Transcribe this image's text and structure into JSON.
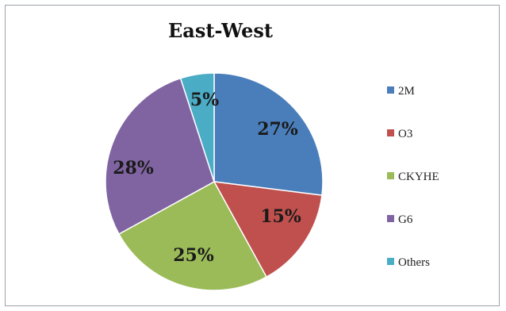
{
  "chart_data": {
    "type": "pie",
    "title": "East-West",
    "categories": [
      "2M",
      "O3",
      "CKYHE",
      "G6",
      "Others"
    ],
    "values": [
      27,
      15,
      25,
      28,
      5
    ],
    "labels": [
      "27%",
      "15%",
      "25%",
      "28%",
      "5%"
    ],
    "colors": [
      "#4a7ebb",
      "#c0504d",
      "#9bbb59",
      "#8064a2",
      "#4bacc6"
    ],
    "legend": "right"
  }
}
